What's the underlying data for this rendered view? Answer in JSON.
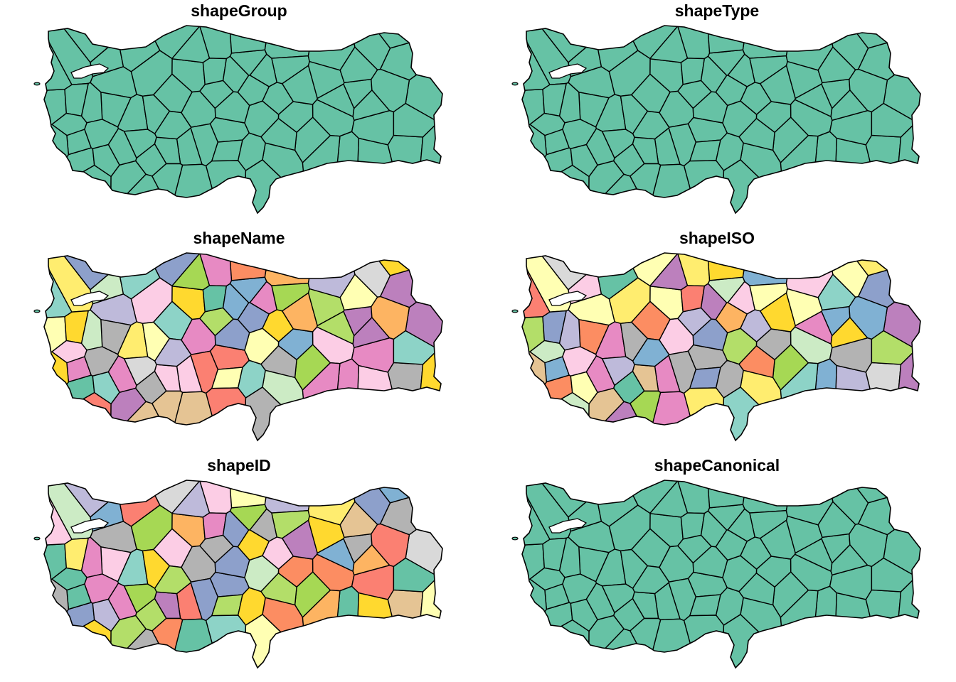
{
  "panels": [
    {
      "title": "shapeGroup",
      "fill_mode": "uniform"
    },
    {
      "title": "shapeType",
      "fill_mode": "uniform"
    },
    {
      "title": "shapeName",
      "fill_mode": "categorical",
      "seed": 3
    },
    {
      "title": "shapeISO",
      "fill_mode": "categorical",
      "seed": 7
    },
    {
      "title": "shapeID",
      "fill_mode": "categorical",
      "seed": 11
    },
    {
      "title": "shapeCanonical",
      "fill_mode": "uniform"
    }
  ],
  "colors": {
    "uniform_fill": "#66c2a5",
    "border": "#000000",
    "water": "#ffffff",
    "palette": [
      "#66c2a5",
      "#fc8d62",
      "#8da0cb",
      "#e78ac3",
      "#a6d854",
      "#ffd92f",
      "#e5c494",
      "#b3b3b3",
      "#8dd3c7",
      "#ffffb3",
      "#bebada",
      "#fb8072",
      "#80b1d3",
      "#fdb462",
      "#b3de69",
      "#fccde5",
      "#d9d9d9",
      "#bc80bd",
      "#ccebc5",
      "#ffed6f"
    ]
  }
}
